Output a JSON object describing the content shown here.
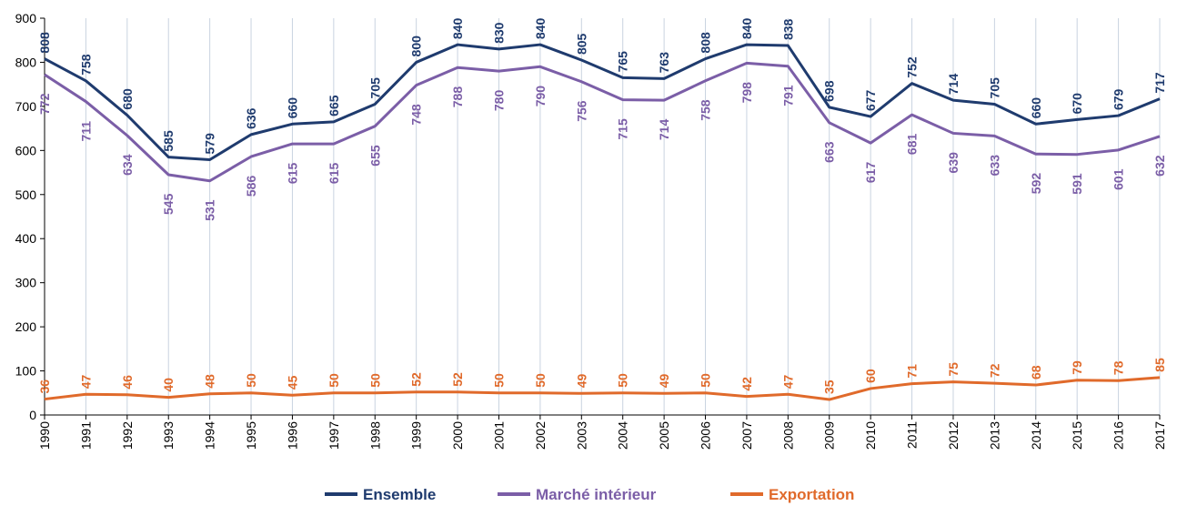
{
  "chart_data": {
    "type": "line",
    "x": [
      "1990",
      "1991",
      "1992",
      "1993",
      "1994",
      "1995",
      "1996",
      "1997",
      "1998",
      "1999",
      "2000",
      "2001",
      "2002",
      "2003",
      "2004",
      "2005",
      "2006",
      "2007",
      "2008",
      "2009",
      "2010",
      "2011",
      "2012",
      "2013",
      "2014",
      "2015",
      "2016",
      "2017"
    ],
    "ylim": [
      0,
      900
    ],
    "yticks": [
      0,
      100,
      200,
      300,
      400,
      500,
      600,
      700,
      800,
      900
    ],
    "grid": "vertical",
    "legend_position": "bottom",
    "series": [
      {
        "name": "Ensemble",
        "color": "#1f3b6e",
        "values": [
          808,
          758,
          680,
          585,
          579,
          636,
          660,
          665,
          705,
          800,
          840,
          830,
          840,
          805,
          765,
          763,
          808,
          840,
          838,
          698,
          677,
          752,
          714,
          705,
          660,
          670,
          679,
          717
        ]
      },
      {
        "name": "Marché  intérieur",
        "color": "#7b5ea7",
        "values": [
          772,
          711,
          634,
          545,
          531,
          586,
          615,
          615,
          655,
          748,
          788,
          780,
          790,
          756,
          715,
          714,
          758,
          798,
          791,
          663,
          617,
          681,
          639,
          633,
          592,
          591,
          601,
          632
        ]
      },
      {
        "name": "Exportation",
        "color": "#e06a2b",
        "values": [
          36,
          47,
          46,
          40,
          48,
          50,
          45,
          50,
          50,
          52,
          52,
          50,
          50,
          49,
          50,
          49,
          50,
          42,
          47,
          35,
          60,
          71,
          75,
          72,
          68,
          79,
          78,
          85
        ]
      }
    ]
  }
}
